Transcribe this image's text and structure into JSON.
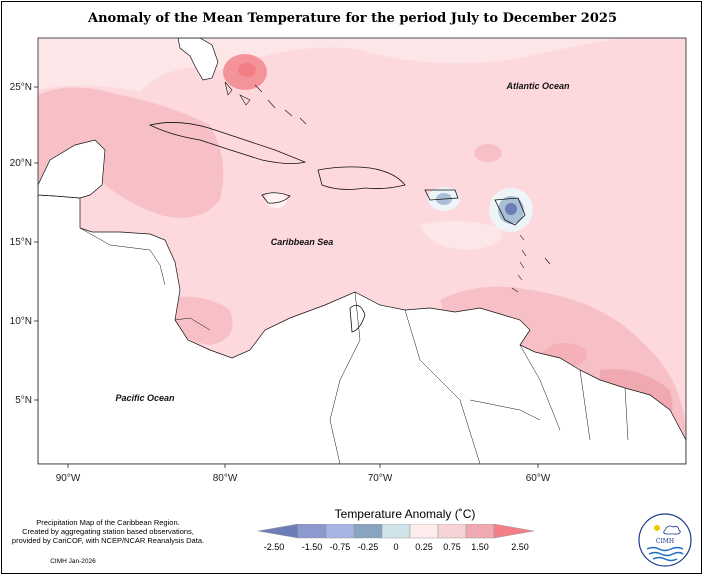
{
  "title": "Anomaly of the Mean Temperature for the period July to December 2025",
  "map": {
    "x_ticks": [
      "90°W",
      "80°W",
      "70°W",
      "60°W"
    ],
    "y_ticks": [
      "25°N",
      "20°N",
      "15°N",
      "10°N",
      "5°N"
    ],
    "labels": {
      "atlantic": "Atlantic Ocean",
      "caribbean": "Caribbean Sea",
      "pacific": "Pacific Ocean"
    }
  },
  "colorbar": {
    "title": "Temperature Anomaly (˚C)",
    "tick_labels": [
      "-2.50",
      "-1.50",
      "-0.75",
      "-0.25",
      "0",
      "0.25",
      "0.75",
      "1.50",
      "2.50"
    ],
    "colors": [
      "#6d7db8",
      "#8b99cf",
      "#a7b4e3",
      "#87a5be",
      "#cfe3e9",
      "#fcecec",
      "#f8d3d6",
      "#f0a9b0",
      "#f37f86"
    ]
  },
  "credits": {
    "line1": "Precipitation Map of the Caribbean Region.",
    "line2": "Created by aggregating station based observations,",
    "line3": "provided by CariCOF, with NCEP/NCAR Reanalysis Data.",
    "stamp": "CIMH Jan-2026"
  },
  "logo": {
    "text": "CIMH"
  },
  "colors": {
    "land": "#ffffff",
    "sea_anomaly": "#fdd8dc",
    "warm_band": "#f7c0c6",
    "warm_spot": "#f4939a",
    "cool_spot": "#a9bfd6"
  }
}
